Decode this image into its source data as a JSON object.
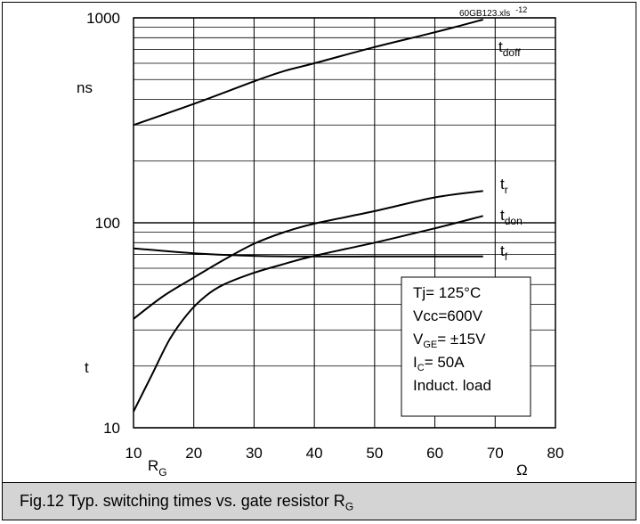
{
  "caption": {
    "main": "Fig.12 Typ. switching times vs. gate resistor R",
    "sub": "G"
  },
  "file_tag": {
    "main": "60GB123.xls",
    "sup": "-12"
  },
  "legend_box": {
    "line1": "Tj= 125°C",
    "line2": "Vcc=600V",
    "line3_main": "V",
    "line3_sub": "GE",
    "line3_rest": "= ±15V",
    "line4_main": "I",
    "line4_sub": "C",
    "line4_rest": "= 50A",
    "line5": "Induct. load"
  },
  "chart_data": {
    "type": "line",
    "title": "",
    "xlabel_main": "R",
    "xlabel_sub": "G",
    "x_unit": "Ω",
    "ylabel": "t",
    "y_unit": "ns",
    "xlim": [
      10,
      80
    ],
    "ylim": [
      10,
      1000
    ],
    "y_scale": "log",
    "x_ticks": [
      10,
      20,
      30,
      40,
      50,
      60,
      70,
      80
    ],
    "y_ticks": [
      10,
      100,
      1000
    ],
    "grid": true,
    "series": [
      {
        "name_main": "t",
        "name_sub": "doff",
        "points": [
          [
            10,
            300
          ],
          [
            20,
            380
          ],
          [
            30,
            490
          ],
          [
            35,
            550
          ],
          [
            40,
            600
          ],
          [
            50,
            720
          ],
          [
            60,
            850
          ],
          [
            68,
            980
          ]
        ]
      },
      {
        "name_main": "t",
        "name_sub": "r",
        "points": [
          [
            10,
            34
          ],
          [
            15,
            44
          ],
          [
            20,
            54
          ],
          [
            25,
            66
          ],
          [
            30,
            79
          ],
          [
            35,
            90
          ],
          [
            40,
            99
          ],
          [
            50,
            114
          ],
          [
            60,
            133
          ],
          [
            68,
            143
          ]
        ]
      },
      {
        "name_main": "t",
        "name_sub": "don",
        "points": [
          [
            10,
            12
          ],
          [
            13,
            18
          ],
          [
            16,
            27
          ],
          [
            19,
            36
          ],
          [
            22,
            44
          ],
          [
            25,
            50
          ],
          [
            30,
            57
          ],
          [
            35,
            63
          ],
          [
            40,
            69
          ],
          [
            50,
            80
          ],
          [
            60,
            94
          ],
          [
            68,
            108
          ]
        ]
      },
      {
        "name_main": "t",
        "name_sub": "f",
        "points": [
          [
            10,
            75
          ],
          [
            20,
            71
          ],
          [
            30,
            69
          ],
          [
            40,
            68.5
          ],
          [
            50,
            68.5
          ],
          [
            60,
            68.5
          ],
          [
            68,
            68.5
          ]
        ]
      }
    ]
  }
}
